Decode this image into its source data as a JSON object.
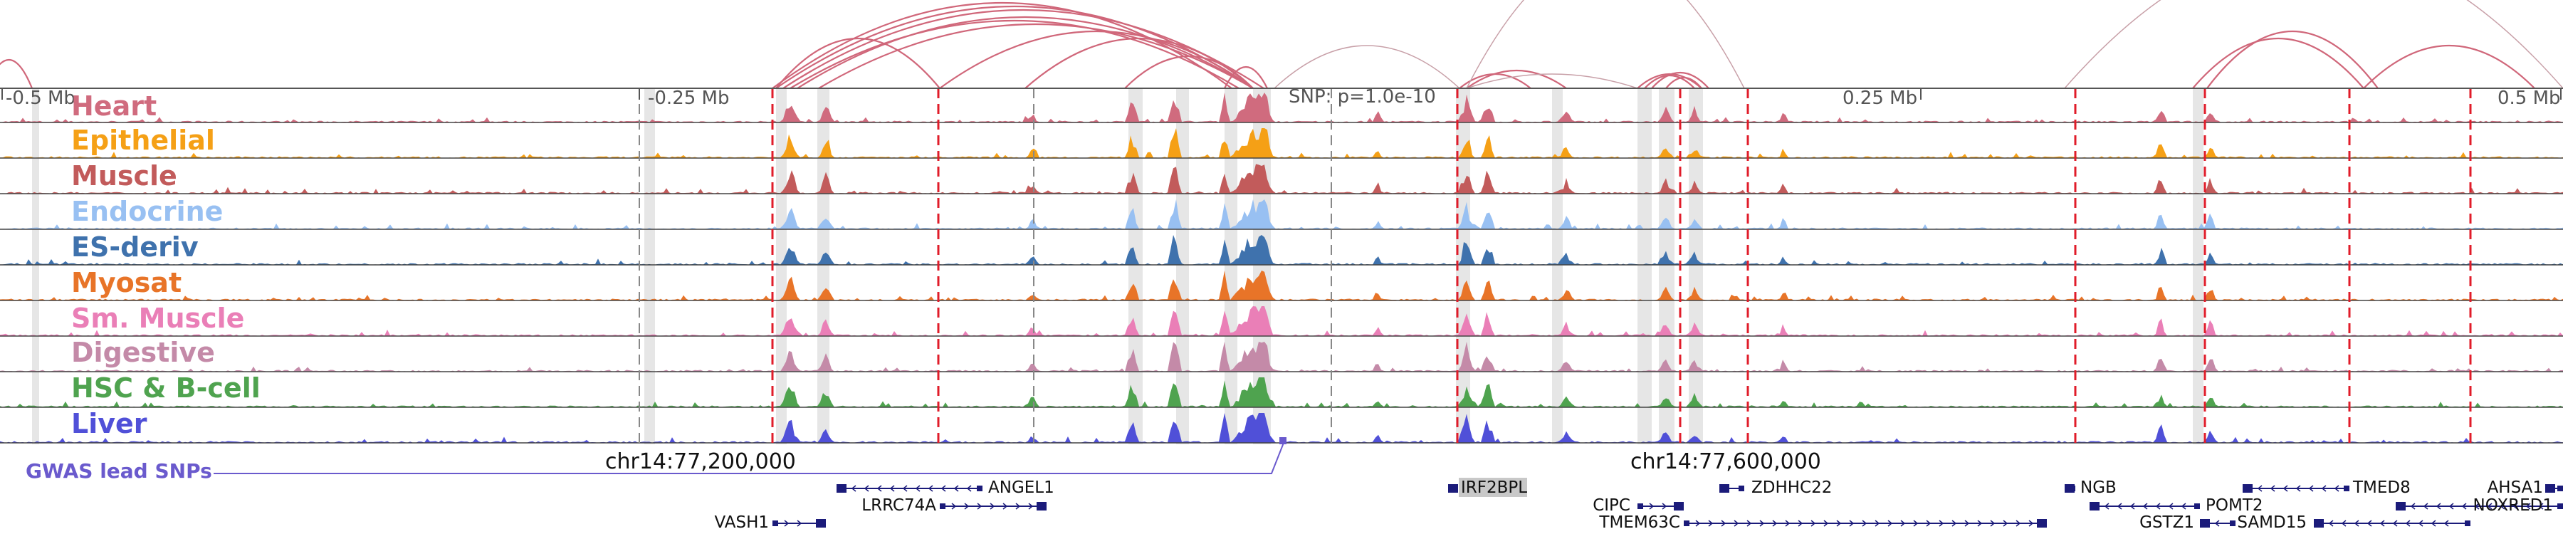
{
  "tracks": [
    {
      "name": "Heart",
      "color": "#d06b7e"
    },
    {
      "name": "Epithelial",
      "color": "#f5a016"
    },
    {
      "name": "Muscle",
      "color": "#c25b5b"
    },
    {
      "name": "Endocrine",
      "color": "#98c0f2"
    },
    {
      "name": "ES-deriv",
      "color": "#3f72ad"
    },
    {
      "name": "Myosat",
      "color": "#e87428"
    },
    {
      "name": "Sm. Muscle",
      "color": "#ea7fb7"
    },
    {
      "name": "Digestive",
      "color": "#c48aa8"
    },
    {
      "name": "HSC & B-cell",
      "color": "#4fa34f"
    },
    {
      "name": "Liver",
      "color": "#5050d8"
    }
  ],
  "axis": {
    "labels": [
      "-0.5 Mb",
      "-0.25 Mb",
      "0.25 Mb",
      "0.5 Mb"
    ],
    "snp_label": "SNP: p=1.0e-10"
  },
  "coordinates": [
    "chr14:77,200,000",
    "chr14:77,600,000"
  ],
  "gwas_label": "GWAS lead SNPs",
  "genes": [
    "ANGEL1",
    "LRRC74A",
    "VASH1",
    "IRF2BPL",
    "ZDHHC22",
    "CIPC",
    "TMEM63C",
    "NGB",
    "POMT2",
    "GSTZ1",
    "TMED8",
    "SAMD15",
    "AHSA1",
    "NOXRED1"
  ],
  "highlight_gene": "IRF2BPL",
  "colors": {
    "loop": "#d0677a",
    "loop_faint": "#c8a0a8",
    "dashed": "#e01c2a",
    "gene": "#1b1b7a",
    "gwas": "#6a5acd"
  }
}
